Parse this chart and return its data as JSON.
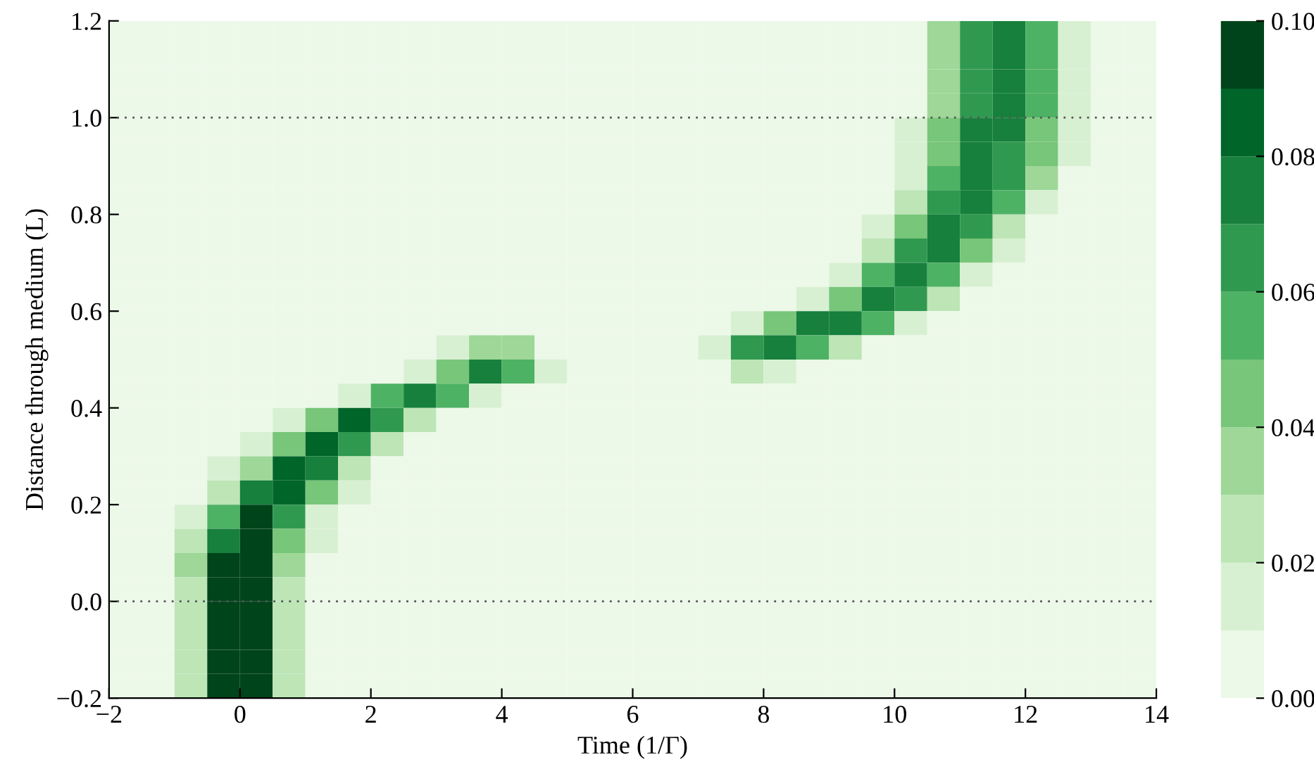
{
  "chart_data": {
    "type": "heatmap",
    "xlabel": "Time (1/Γ)",
    "ylabel": "Distance through medium (L)",
    "x": [
      -1.75,
      -1.25,
      -0.75,
      -0.25,
      0.25,
      0.75,
      1.25,
      1.75,
      2.25,
      2.75,
      3.25,
      3.75,
      4.25,
      4.75,
      5.25,
      5.75,
      6.25,
      6.75,
      7.25,
      7.75,
      8.25,
      8.75,
      9.25,
      9.75,
      10.25,
      10.75,
      11.25,
      11.75,
      12.25,
      12.75,
      13.25,
      13.75
    ],
    "cells": [
      [
        0,
        0,
        0,
        0,
        0,
        0,
        0,
        0,
        0,
        0,
        0,
        0,
        0,
        0,
        0,
        0,
        0,
        0,
        0,
        0,
        0,
        0,
        0,
        0,
        0,
        0.03,
        0.06,
        0.07,
        0.05,
        0.01,
        0,
        0
      ],
      [
        0,
        0,
        0,
        0,
        0,
        0,
        0,
        0,
        0,
        0,
        0,
        0,
        0,
        0,
        0,
        0,
        0,
        0,
        0,
        0,
        0,
        0,
        0,
        0,
        0,
        0.03,
        0.06,
        0.07,
        0.05,
        0.01,
        0,
        0
      ],
      [
        0,
        0,
        0,
        0,
        0,
        0,
        0,
        0,
        0,
        0,
        0,
        0,
        0,
        0,
        0,
        0,
        0,
        0,
        0,
        0,
        0,
        0,
        0,
        0,
        0,
        0.03,
        0.06,
        0.07,
        0.05,
        0.01,
        0,
        0
      ],
      [
        0,
        0,
        0,
        0,
        0,
        0,
        0,
        0,
        0,
        0,
        0,
        0,
        0,
        0,
        0,
        0,
        0,
        0,
        0,
        0,
        0,
        0,
        0,
        0,
        0,
        0.03,
        0.06,
        0.07,
        0.05,
        0.01,
        0,
        0
      ],
      [
        0,
        0,
        0,
        0,
        0,
        0,
        0,
        0,
        0,
        0,
        0,
        0,
        0,
        0,
        0,
        0,
        0,
        0,
        0,
        0,
        0,
        0,
        0,
        0,
        0.01,
        0.04,
        0.07,
        0.07,
        0.04,
        0.01,
        0,
        0
      ],
      [
        0,
        0,
        0,
        0,
        0,
        0,
        0,
        0,
        0,
        0,
        0,
        0,
        0,
        0,
        0,
        0,
        0,
        0,
        0,
        0,
        0,
        0,
        0,
        0,
        0.01,
        0.04,
        0.07,
        0.06,
        0.04,
        0.01,
        0,
        0
      ],
      [
        0,
        0,
        0,
        0,
        0,
        0,
        0,
        0,
        0,
        0,
        0,
        0,
        0,
        0,
        0,
        0,
        0,
        0,
        0,
        0,
        0,
        0,
        0,
        0,
        0.01,
        0.05,
        0.07,
        0.06,
        0.03,
        0,
        0,
        0
      ],
      [
        0,
        0,
        0,
        0,
        0,
        0,
        0,
        0,
        0,
        0,
        0,
        0,
        0,
        0,
        0,
        0,
        0,
        0,
        0,
        0,
        0,
        0,
        0,
        0,
        0.02,
        0.06,
        0.07,
        0.05,
        0.01,
        0,
        0,
        0
      ],
      [
        0,
        0,
        0,
        0,
        0,
        0,
        0,
        0,
        0,
        0,
        0,
        0,
        0,
        0,
        0,
        0,
        0,
        0,
        0,
        0,
        0,
        0,
        0,
        0.01,
        0.04,
        0.07,
        0.06,
        0.02,
        0,
        0,
        0,
        0
      ],
      [
        0,
        0,
        0,
        0,
        0,
        0,
        0,
        0,
        0,
        0,
        0,
        0,
        0,
        0,
        0,
        0,
        0,
        0,
        0,
        0,
        0,
        0,
        0,
        0.02,
        0.06,
        0.07,
        0.04,
        0.01,
        0,
        0,
        0,
        0
      ],
      [
        0,
        0,
        0,
        0,
        0,
        0,
        0,
        0,
        0,
        0,
        0,
        0,
        0,
        0,
        0,
        0,
        0,
        0,
        0,
        0,
        0,
        0,
        0.01,
        0.05,
        0.07,
        0.05,
        0.01,
        0,
        0,
        0,
        0,
        0
      ],
      [
        0,
        0,
        0,
        0,
        0,
        0,
        0,
        0,
        0,
        0,
        0,
        0,
        0,
        0,
        0,
        0,
        0,
        0,
        0,
        0,
        0,
        0.01,
        0.04,
        0.07,
        0.06,
        0.02,
        0,
        0,
        0,
        0,
        0,
        0
      ],
      [
        0,
        0,
        0,
        0,
        0,
        0,
        0,
        0,
        0,
        0,
        0,
        0,
        0,
        0,
        0,
        0,
        0,
        0,
        0,
        0.01,
        0.04,
        0.07,
        0.07,
        0.05,
        0.01,
        0,
        0,
        0,
        0,
        0,
        0,
        0
      ],
      [
        0,
        0,
        0,
        0,
        0,
        0,
        0,
        0,
        0,
        0,
        0.01,
        0.03,
        0.03,
        0,
        0,
        0,
        0,
        0,
        0.01,
        0.06,
        0.07,
        0.05,
        0.02,
        0,
        0,
        0,
        0,
        0,
        0,
        0,
        0,
        0
      ],
      [
        0,
        0,
        0,
        0,
        0,
        0,
        0,
        0,
        0,
        0.01,
        0.04,
        0.07,
        0.05,
        0.01,
        0,
        0,
        0,
        0,
        0,
        0.02,
        0.01,
        0,
        0,
        0,
        0,
        0,
        0,
        0,
        0,
        0,
        0,
        0
      ],
      [
        0,
        0,
        0,
        0,
        0,
        0,
        0,
        0.01,
        0.05,
        0.07,
        0.05,
        0.01,
        0,
        0,
        0,
        0,
        0,
        0,
        0,
        0,
        0,
        0,
        0,
        0,
        0,
        0,
        0,
        0,
        0,
        0,
        0,
        0
      ],
      [
        0,
        0,
        0,
        0,
        0,
        0.01,
        0.04,
        0.08,
        0.06,
        0.02,
        0,
        0,
        0,
        0,
        0,
        0,
        0,
        0,
        0,
        0,
        0,
        0,
        0,
        0,
        0,
        0,
        0,
        0,
        0,
        0,
        0,
        0
      ],
      [
        0,
        0,
        0,
        0,
        0.01,
        0.04,
        0.08,
        0.06,
        0.02,
        0,
        0,
        0,
        0,
        0,
        0,
        0,
        0,
        0,
        0,
        0,
        0,
        0,
        0,
        0,
        0,
        0,
        0,
        0,
        0,
        0,
        0,
        0
      ],
      [
        0,
        0,
        0,
        0.01,
        0.03,
        0.08,
        0.07,
        0.02,
        0,
        0,
        0,
        0,
        0,
        0,
        0,
        0,
        0,
        0,
        0,
        0,
        0,
        0,
        0,
        0,
        0,
        0,
        0,
        0,
        0,
        0,
        0,
        0
      ],
      [
        0,
        0,
        0,
        0.02,
        0.07,
        0.08,
        0.04,
        0.01,
        0,
        0,
        0,
        0,
        0,
        0,
        0,
        0,
        0,
        0,
        0,
        0,
        0,
        0,
        0,
        0,
        0,
        0,
        0,
        0,
        0,
        0,
        0,
        0
      ],
      [
        0,
        0,
        0.01,
        0.05,
        0.09,
        0.06,
        0.01,
        0,
        0,
        0,
        0,
        0,
        0,
        0,
        0,
        0,
        0,
        0,
        0,
        0,
        0,
        0,
        0,
        0,
        0,
        0,
        0,
        0,
        0,
        0,
        0,
        0
      ],
      [
        0,
        0,
        0.02,
        0.07,
        0.09,
        0.04,
        0.01,
        0,
        0,
        0,
        0,
        0,
        0,
        0,
        0,
        0,
        0,
        0,
        0,
        0,
        0,
        0,
        0,
        0,
        0,
        0,
        0,
        0,
        0,
        0,
        0,
        0
      ],
      [
        0,
        0,
        0.03,
        0.09,
        0.09,
        0.03,
        0,
        0,
        0,
        0,
        0,
        0,
        0,
        0,
        0,
        0,
        0,
        0,
        0,
        0,
        0,
        0,
        0,
        0,
        0,
        0,
        0,
        0,
        0,
        0,
        0,
        0
      ],
      [
        0,
        0,
        0.02,
        0.09,
        0.09,
        0.02,
        0,
        0,
        0,
        0,
        0,
        0,
        0,
        0,
        0,
        0,
        0,
        0,
        0,
        0,
        0,
        0,
        0,
        0,
        0,
        0,
        0,
        0,
        0,
        0,
        0,
        0
      ],
      [
        0,
        0,
        0.02,
        0.09,
        0.09,
        0.02,
        0,
        0,
        0,
        0,
        0,
        0,
        0,
        0,
        0,
        0,
        0,
        0,
        0,
        0,
        0,
        0,
        0,
        0,
        0,
        0,
        0,
        0,
        0,
        0,
        0,
        0
      ],
      [
        0,
        0,
        0.02,
        0.09,
        0.09,
        0.02,
        0,
        0,
        0,
        0,
        0,
        0,
        0,
        0,
        0,
        0,
        0,
        0,
        0,
        0,
        0,
        0,
        0,
        0,
        0,
        0,
        0,
        0,
        0,
        0,
        0,
        0
      ],
      [
        0,
        0,
        0.02,
        0.09,
        0.09,
        0.02,
        0,
        0,
        0,
        0,
        0,
        0,
        0,
        0,
        0,
        0,
        0,
        0,
        0,
        0,
        0,
        0,
        0,
        0,
        0,
        0,
        0,
        0,
        0,
        0,
        0,
        0
      ],
      [
        0,
        0,
        0.02,
        0.09,
        0.09,
        0.02,
        0,
        0,
        0,
        0,
        0,
        0,
        0,
        0,
        0,
        0,
        0,
        0,
        0,
        0,
        0,
        0,
        0,
        0,
        0,
        0,
        0,
        0,
        0,
        0,
        0,
        0
      ]
    ],
    "xlim": [
      -2,
      14
    ],
    "ylim": [
      -0.2,
      1.2
    ],
    "xticks": [
      {
        "value": -2,
        "label": "−2"
      },
      0,
      2,
      4,
      6,
      8,
      10,
      12,
      14
    ],
    "yticks": [
      {
        "value": -0.2,
        "label": "−0.2"
      },
      {
        "value": 0,
        "label": "0.0"
      },
      0.2,
      0.4,
      0.6,
      0.8,
      {
        "value": 1,
        "label": "1.0"
      },
      1.2
    ],
    "clim": [
      0,
      0.1
    ],
    "cticks": [
      {
        "value": 0,
        "label": "0.00"
      },
      {
        "value": 0.02,
        "label": "0.02"
      },
      {
        "value": 0.04,
        "label": "0.04"
      },
      {
        "value": 0.06,
        "label": "0.06"
      },
      {
        "value": 0.08,
        "label": "0.08"
      },
      {
        "value": 0.1,
        "label": "0.10"
      }
    ],
    "ref_lines": [
      {
        "axis": "y",
        "value": 0,
        "color": "#555555",
        "line_style": "dotted"
      },
      {
        "axis": "y",
        "value": 1,
        "color": "#555555",
        "line_style": "dotted"
      }
    ]
  }
}
